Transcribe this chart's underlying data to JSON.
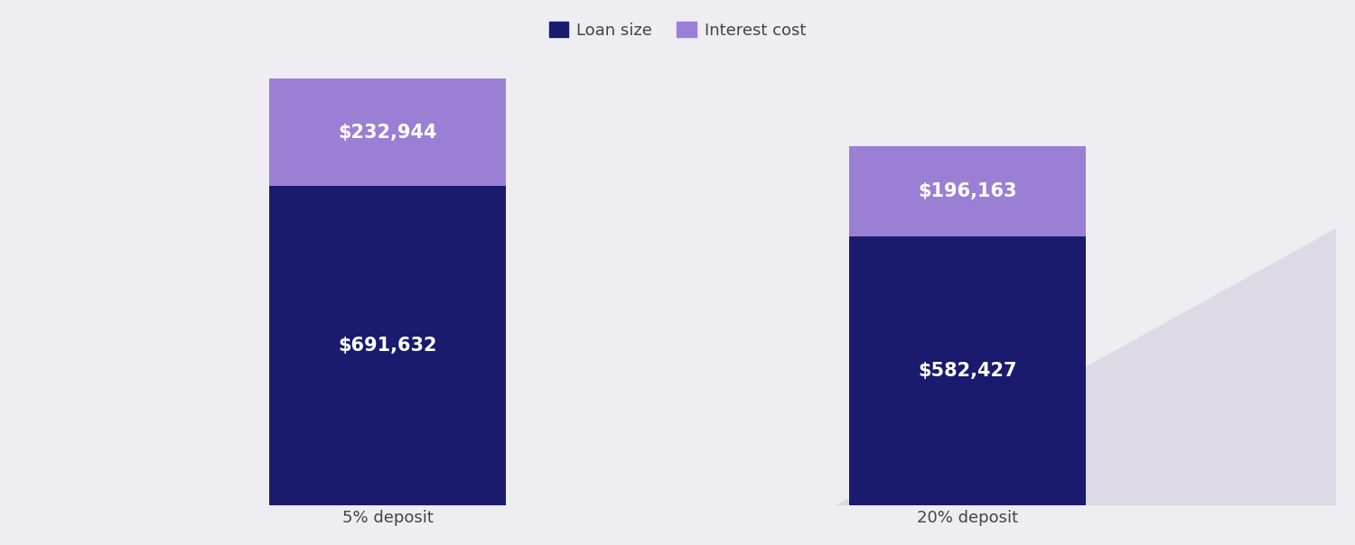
{
  "categories": [
    "5% deposit",
    "20% deposit"
  ],
  "loan_sizes": [
    691632,
    582427
  ],
  "interest_costs": [
    232944,
    196163
  ],
  "loan_labels": [
    "$691,632",
    "$582,427"
  ],
  "interest_labels": [
    "$232,944",
    "$196,163"
  ],
  "loan_color": "#1a1a6e",
  "interest_color": "#9b7fd4",
  "bg_color": "#ededf2",
  "text_color": "#ffffff",
  "legend_loan_label": "Loan size",
  "legend_interest_label": "Interest cost",
  "bar_width": 0.18,
  "label_fontsize": 15,
  "tick_fontsize": 13,
  "legend_fontsize": 13,
  "x_positions": [
    0.28,
    0.72
  ]
}
